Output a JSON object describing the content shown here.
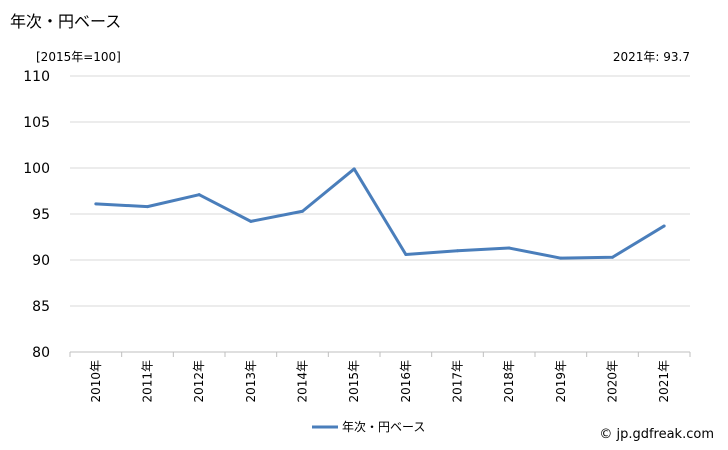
{
  "title": "年次・円ベース",
  "unit_label": "[2015年=100]",
  "latest_label": "2021年: 93.7",
  "source": "© jp.gdfreak.com",
  "chart_data": {
    "type": "line",
    "categories": [
      "2010年",
      "2011年",
      "2012年",
      "2013年",
      "2014年",
      "2015年",
      "2016年",
      "2017年",
      "2018年",
      "2019年",
      "2020年",
      "2021年"
    ],
    "series": [
      {
        "name": "年次・円ベース",
        "color": "#4a7ebb",
        "values": [
          96.1,
          95.8,
          97.1,
          94.2,
          95.3,
          99.9,
          90.6,
          91.0,
          91.3,
          90.2,
          90.3,
          93.7
        ]
      }
    ],
    "yticks": [
      80,
      85,
      90,
      95,
      100,
      105,
      110
    ],
    "ylim": [
      80,
      110
    ],
    "grid": true,
    "legend": "bottom-center"
  }
}
